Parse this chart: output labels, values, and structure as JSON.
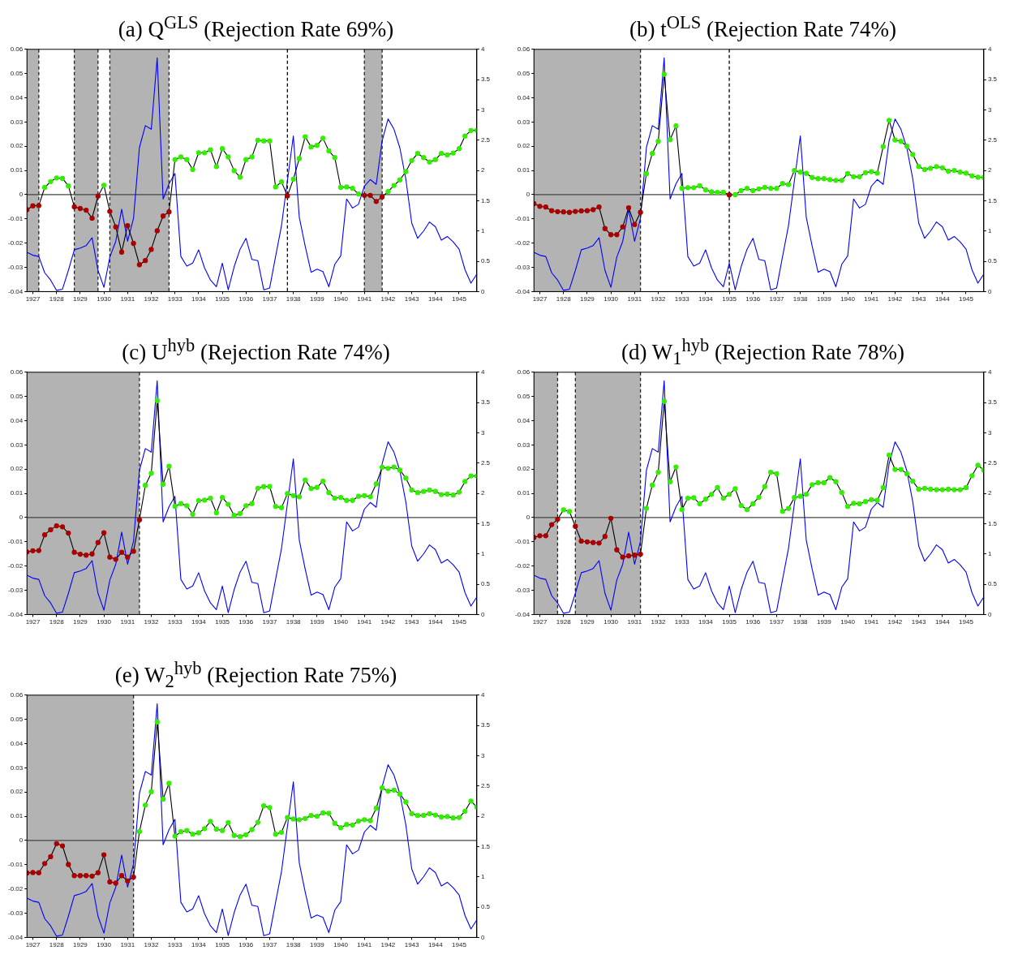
{
  "chart_data": [
    {
      "type": "line",
      "title": "(a) Q$^{GLS}$ (Rejection Rate 69%)",
      "marker": "circle",
      "grid": false,
      "legend": false,
      "x": [
        1926.75,
        1927,
        1927.25,
        1927.5,
        1927.75,
        1928,
        1928.25,
        1928.5,
        1928.75,
        1929,
        1929.25,
        1929.5,
        1929.75,
        1930,
        1930.25,
        1930.5,
        1930.75,
        1931,
        1931.25,
        1931.5,
        1931.75,
        1932,
        1932.25,
        1932.5,
        1932.75,
        1933,
        1933.25,
        1933.5,
        1933.75,
        1934,
        1934.25,
        1934.5,
        1934.75,
        1935,
        1935.25,
        1935.5,
        1935.75,
        1936,
        1936.25,
        1936.5,
        1936.75,
        1937,
        1937.25,
        1937.5,
        1937.75,
        1938,
        1938.25,
        1938.5,
        1938.75,
        1939,
        1939.25,
        1939.5,
        1939.75,
        1940,
        1940.25,
        1940.5,
        1940.75,
        1941,
        1941.25,
        1941.5,
        1941.75,
        1942,
        1942.25,
        1942.5,
        1942.75,
        1943,
        1943.25,
        1943.5,
        1943.75,
        1944,
        1944.25,
        1944.5,
        1944.75,
        1945,
        1945.25,
        1945.5,
        1945.75
      ],
      "xlim": [
        1926.75,
        1945.75
      ],
      "xticks": [
        1927,
        1928,
        1929,
        1930,
        1931,
        1932,
        1933,
        1934,
        1935,
        1936,
        1937,
        1938,
        1939,
        1940,
        1941,
        1942,
        1943,
        1944,
        1945
      ],
      "ylim": [
        -0.04,
        0.06
      ],
      "yticks": [
        -0.04,
        -0.03,
        -0.02,
        -0.01,
        0,
        0.01,
        0.02,
        0.03,
        0.04,
        0.05,
        0.06
      ],
      "y2lim": [
        0,
        4
      ],
      "y2ticks": [
        0,
        0.5,
        1,
        1.5,
        2,
        2.5,
        3,
        3.5,
        4
      ],
      "bands": [
        {
          "axis": "x",
          "from": 1926.75,
          "to": 1927.25,
          "color": "#b3b3b3"
        },
        {
          "axis": "x",
          "from": 1928.75,
          "to": 1929.75,
          "color": "#b3b3b3"
        },
        {
          "axis": "x",
          "from": 1930.25,
          "to": 1932.75,
          "color": "#b3b3b3"
        },
        {
          "axis": "x",
          "from": 1941,
          "to": 1941.75,
          "color": "#b3b3b3"
        }
      ],
      "ref_lines": [
        {
          "axis": "x",
          "value": 1927.25,
          "color": "#222222",
          "line_style": "dashed"
        },
        {
          "axis": "x",
          "value": 1928.75,
          "color": "#222222",
          "line_style": "dashed"
        },
        {
          "axis": "x",
          "value": 1929.75,
          "color": "#222222",
          "line_style": "dashed"
        },
        {
          "axis": "x",
          "value": 1930.25,
          "color": "#222222",
          "line_style": "dashed"
        },
        {
          "axis": "x",
          "value": 1932.75,
          "color": "#222222",
          "line_style": "dashed"
        },
        {
          "axis": "x",
          "value": 1937.75,
          "color": "#000000",
          "line_style": "dashed"
        },
        {
          "axis": "x",
          "value": 1941,
          "color": "#222222",
          "line_style": "dashed"
        },
        {
          "axis": "x",
          "value": 1941.75,
          "color": "#222222",
          "line_style": "dashed"
        },
        {
          "axis": "y",
          "value": 0,
          "color": "#444444",
          "line_style": "solid"
        }
      ],
      "series": [
        {
          "color": "#000000",
          "values": [
            -0.0062,
            -0.0046,
            -0.0045,
            0.003,
            0.0054,
            0.0069,
            0.0067,
            0.0036,
            -0.005,
            -0.0057,
            -0.0064,
            -0.0097,
            -0.0006,
            0.0039,
            -0.0069,
            -0.0133,
            -0.0237,
            -0.0128,
            -0.0201,
            -0.0289,
            -0.0272,
            -0.0226,
            -0.0149,
            -0.0088,
            -0.0071,
            0.0145,
            0.0156,
            0.0145,
            0.0104,
            0.0173,
            0.0173,
            0.0185,
            0.0116,
            0.019,
            0.0156,
            0.0099,
            0.0072,
            0.0145,
            0.0156,
            0.0225,
            0.0222,
            0.0222,
            0.0032,
            0.0053,
            -0.0005,
            0.0064,
            0.0149,
            0.0239,
            0.0197,
            0.0204,
            0.0233,
            0.0181,
            0.0153,
            0.003,
            0.0032,
            0.0026,
            0.0003,
            -0.0003,
            -0.0003,
            -0.0028,
            -0.0009,
            0.0013,
            0.0038,
            0.0061,
            0.0095,
            0.0141,
            0.017,
            0.0153,
            0.0135,
            0.0145,
            0.017,
            0.0164,
            0.0172,
            0.019,
            0.0242,
            0.0265,
            0.0266
          ],
          "colors": [
            "#aa0000",
            "#aa0000",
            "#aa0000",
            "#33ee00",
            "#33ee00",
            "#33ee00",
            "#33ee00",
            "#33ee00",
            "#aa0000",
            "#aa0000",
            "#aa0000",
            "#aa0000",
            "#aa0000",
            "#33ee00",
            "#aa0000",
            "#aa0000",
            "#aa0000",
            "#aa0000",
            "#aa0000",
            "#aa0000",
            "#aa0000",
            "#aa0000",
            "#aa0000",
            "#aa0000",
            "#aa0000",
            "#33ee00",
            "#33ee00",
            "#33ee00",
            "#33ee00",
            "#33ee00",
            "#33ee00",
            "#33ee00",
            "#33ee00",
            "#33ee00",
            "#33ee00",
            "#33ee00",
            "#33ee00",
            "#33ee00",
            "#33ee00",
            "#33ee00",
            "#33ee00",
            "#33ee00",
            "#33ee00",
            "#33ee00",
            "#aa0000",
            "#33ee00",
            "#33ee00",
            "#33ee00",
            "#33ee00",
            "#33ee00",
            "#33ee00",
            "#33ee00",
            "#33ee00",
            "#33ee00",
            "#33ee00",
            "#33ee00",
            "#33ee00",
            "#aa0000",
            "#aa0000",
            "#aa0000",
            "#aa0000",
            "#33ee00",
            "#33ee00",
            "#33ee00",
            "#33ee00",
            "#33ee00",
            "#33ee00",
            "#33ee00",
            "#33ee00",
            "#33ee00",
            "#33ee00",
            "#33ee00",
            "#33ee00",
            "#33ee00",
            "#33ee00",
            "#33ee00",
            "#33ee00"
          ]
        },
        {
          "color": "#0000ff",
          "axis": "y2",
          "marker": "none",
          "values": [
            0.65,
            0.6,
            0.58,
            0.31,
            0.19,
            0.02,
            0.04,
            0.35,
            0.69,
            0.72,
            0.76,
            0.89,
            0.35,
            0.07,
            0.57,
            0.83,
            1.36,
            0.83,
            1.21,
            2.38,
            2.74,
            2.68,
            3.86,
            1.53,
            1.78,
            1.95,
            0.58,
            0.42,
            0.47,
            0.69,
            0.39,
            0.19,
            0.08,
            0.47,
            0.03,
            0.41,
            0.7,
            0.88,
            0.53,
            0.51,
            0.03,
            0.06,
            0.58,
            1.09,
            1.83,
            2.57,
            1.23,
            0.75,
            0.32,
            0.37,
            0.33,
            0.08,
            0.45,
            0.59,
            1.53,
            1.38,
            1.44,
            1.74,
            1.85,
            1.77,
            2.49,
            2.85,
            2.68,
            2.37,
            1.86,
            1.13,
            0.88,
            1,
            1.15,
            1.07,
            0.85,
            0.91,
            0.82,
            0.7,
            0.36,
            0.14,
            0.29
          ]
        }
      ]
    },
    {
      "type": "line",
      "title": "(b) t$^{OLS}$ (Rejection Rate 74%)",
      "marker": "circle",
      "grid": false,
      "legend": false,
      "x": [
        1926.75,
        1927,
        1927.25,
        1927.5,
        1927.75,
        1928,
        1928.25,
        1928.5,
        1928.75,
        1929,
        1929.25,
        1929.5,
        1929.75,
        1930,
        1930.25,
        1930.5,
        1930.75,
        1931,
        1931.25,
        1931.5,
        1931.75,
        1932,
        1932.25,
        1932.5,
        1932.75,
        1933,
        1933.25,
        1933.5,
        1933.75,
        1934,
        1934.25,
        1934.5,
        1934.75,
        1935,
        1935.25,
        1935.5,
        1935.75,
        1936,
        1936.25,
        1936.5,
        1936.75,
        1937,
        1937.25,
        1937.5,
        1937.75,
        1938,
        1938.25,
        1938.5,
        1938.75,
        1939,
        1939.25,
        1939.5,
        1939.75,
        1940,
        1940.25,
        1940.5,
        1940.75,
        1941,
        1941.25,
        1941.5,
        1941.75,
        1942,
        1942.25,
        1942.5,
        1942.75,
        1943,
        1943.25,
        1943.5,
        1943.75,
        1944,
        1944.25,
        1944.5,
        1944.75,
        1945,
        1945.25,
        1945.5,
        1945.75
      ],
      "xlim": [
        1926.75,
        1945.75
      ],
      "xticks": [
        1927,
        1928,
        1929,
        1930,
        1931,
        1932,
        1933,
        1934,
        1935,
        1936,
        1937,
        1938,
        1939,
        1940,
        1941,
        1942,
        1943,
        1944,
        1945
      ],
      "ylim": [
        -0.04,
        0.06
      ],
      "yticks": [
        -0.04,
        -0.03,
        -0.02,
        -0.01,
        0,
        0.01,
        0.02,
        0.03,
        0.04,
        0.05,
        0.06
      ],
      "y2lim": [
        0,
        4
      ],
      "y2ticks": [
        0,
        0.5,
        1,
        1.5,
        2,
        2.5,
        3,
        3.5,
        4
      ],
      "bands": [
        {
          "axis": "x",
          "from": 1926.75,
          "to": 1931.25,
          "color": "#b3b3b3"
        }
      ],
      "ref_lines": [
        {
          "axis": "x",
          "value": 1931.25,
          "color": "#222222",
          "line_style": "dashed"
        },
        {
          "axis": "x",
          "value": 1935,
          "color": "#000000",
          "line_style": "dashed"
        },
        {
          "axis": "y",
          "value": 0,
          "color": "#444444",
          "line_style": "solid"
        }
      ],
      "series": [
        {
          "color": "#000000",
          "values": [
            -0.0037,
            -0.0048,
            -0.0051,
            -0.0066,
            -0.007,
            -0.0071,
            -0.0073,
            -0.0069,
            -0.0067,
            -0.0066,
            -0.0062,
            -0.0051,
            -0.014,
            -0.0165,
            -0.0165,
            -0.0133,
            -0.0054,
            -0.0123,
            -0.0073,
            0.0087,
            0.017,
            0.022,
            0.0497,
            0.0227,
            0.0284,
            0.0026,
            0.0029,
            0.0029,
            0.0037,
            0.002,
            0.0012,
            0.0009,
            0.001,
            -0.0001,
            0,
            0.0017,
            0.0026,
            0.0017,
            0.0024,
            0.003,
            0.0026,
            0.0026,
            0.0046,
            0.0042,
            0.01,
            0.0093,
            0.0088,
            0.0071,
            0.0066,
            0.0066,
            0.0062,
            0.0059,
            0.0059,
            0.0087,
            0.0074,
            0.0074,
            0.0091,
            0.0095,
            0.0089,
            0.0199,
            0.0307,
            0.0226,
            0.022,
            0.02,
            0.0166,
            0.0116,
            0.0104,
            0.0109,
            0.0116,
            0.0111,
            0.0097,
            0.01,
            0.0093,
            0.0089,
            0.0078,
            0.0072,
            0.0071
          ],
          "colors": [
            "#aa0000",
            "#aa0000",
            "#aa0000",
            "#aa0000",
            "#aa0000",
            "#aa0000",
            "#aa0000",
            "#aa0000",
            "#aa0000",
            "#aa0000",
            "#aa0000",
            "#aa0000",
            "#aa0000",
            "#aa0000",
            "#aa0000",
            "#aa0000",
            "#aa0000",
            "#aa0000",
            "#aa0000",
            "#33ee00",
            "#33ee00",
            "#33ee00",
            "#33ee00",
            "#33ee00",
            "#33ee00",
            "#33ee00",
            "#33ee00",
            "#33ee00",
            "#33ee00",
            "#33ee00",
            "#33ee00",
            "#33ee00",
            "#33ee00",
            "#aa0000",
            "#33ee00",
            "#33ee00",
            "#33ee00",
            "#33ee00",
            "#33ee00",
            "#33ee00",
            "#33ee00",
            "#33ee00",
            "#33ee00",
            "#33ee00",
            "#33ee00",
            "#33ee00",
            "#33ee00",
            "#33ee00",
            "#33ee00",
            "#33ee00",
            "#33ee00",
            "#33ee00",
            "#33ee00",
            "#33ee00",
            "#33ee00",
            "#33ee00",
            "#33ee00",
            "#33ee00",
            "#33ee00",
            "#33ee00",
            "#33ee00",
            "#33ee00",
            "#33ee00",
            "#33ee00",
            "#33ee00",
            "#33ee00",
            "#33ee00",
            "#33ee00",
            "#33ee00",
            "#33ee00",
            "#33ee00",
            "#33ee00",
            "#33ee00",
            "#33ee00",
            "#33ee00",
            "#33ee00",
            "#33ee00"
          ]
        },
        {
          "color": "#0000ff",
          "axis": "y2",
          "marker": "none",
          "values": [
            0.65,
            0.6,
            0.58,
            0.31,
            0.19,
            0.02,
            0.04,
            0.35,
            0.69,
            0.72,
            0.76,
            0.89,
            0.35,
            0.07,
            0.57,
            0.83,
            1.36,
            0.83,
            1.21,
            2.38,
            2.74,
            2.68,
            3.86,
            1.53,
            1.78,
            1.95,
            0.58,
            0.42,
            0.47,
            0.69,
            0.39,
            0.19,
            0.08,
            0.47,
            0.03,
            0.41,
            0.7,
            0.88,
            0.53,
            0.51,
            0.03,
            0.06,
            0.58,
            1.09,
            1.83,
            2.57,
            1.23,
            0.75,
            0.32,
            0.37,
            0.33,
            0.08,
            0.45,
            0.59,
            1.53,
            1.38,
            1.44,
            1.74,
            1.85,
            1.77,
            2.49,
            2.85,
            2.68,
            2.37,
            1.86,
            1.13,
            0.88,
            1,
            1.15,
            1.07,
            0.85,
            0.91,
            0.82,
            0.7,
            0.36,
            0.14,
            0.29
          ]
        }
      ]
    },
    {
      "type": "line",
      "title": "(c) U$^{hyb}$ (Rejection Rate 74%)",
      "marker": "circle",
      "grid": false,
      "legend": false,
      "x": [
        1926.75,
        1927,
        1927.25,
        1927.5,
        1927.75,
        1928,
        1928.25,
        1928.5,
        1928.75,
        1929,
        1929.25,
        1929.5,
        1929.75,
        1930,
        1930.25,
        1930.5,
        1930.75,
        1931,
        1931.25,
        1931.5,
        1931.75,
        1932,
        1932.25,
        1932.5,
        1932.75,
        1933,
        1933.25,
        1933.5,
        1933.75,
        1934,
        1934.25,
        1934.5,
        1934.75,
        1935,
        1935.25,
        1935.5,
        1935.75,
        1936,
        1936.25,
        1936.5,
        1936.75,
        1937,
        1937.25,
        1937.5,
        1937.75,
        1938,
        1938.25,
        1938.5,
        1938.75,
        1939,
        1939.25,
        1939.5,
        1939.75,
        1940,
        1940.25,
        1940.5,
        1940.75,
        1941,
        1941.25,
        1941.5,
        1941.75,
        1942,
        1942.25,
        1942.5,
        1942.75,
        1943,
        1943.25,
        1943.5,
        1943.75,
        1944,
        1944.25,
        1944.5,
        1944.75,
        1945,
        1945.25,
        1945.5,
        1945.75
      ],
      "xlim": [
        1926.75,
        1945.75
      ],
      "xticks": [
        1927,
        1928,
        1929,
        1930,
        1931,
        1932,
        1933,
        1934,
        1935,
        1936,
        1937,
        1938,
        1939,
        1940,
        1941,
        1942,
        1943,
        1944,
        1945
      ],
      "ylim": [
        -0.04,
        0.06
      ],
      "yticks": [
        -0.04,
        -0.03,
        -0.02,
        -0.01,
        0,
        0.01,
        0.02,
        0.03,
        0.04,
        0.05,
        0.06
      ],
      "y2lim": [
        0,
        4
      ],
      "y2ticks": [
        0,
        0.5,
        1,
        1.5,
        2,
        2.5,
        3,
        3.5,
        4
      ],
      "bands": [
        {
          "axis": "x",
          "from": 1926.75,
          "to": 1931.5,
          "color": "#b3b3b3"
        }
      ],
      "ref_lines": [
        {
          "axis": "x",
          "value": 1931.5,
          "color": "#222222",
          "line_style": "dashed"
        },
        {
          "axis": "y",
          "value": 0,
          "color": "#444444",
          "line_style": "solid"
        }
      ],
      "series": [
        {
          "color": "#000000",
          "values": [
            -0.0142,
            -0.0137,
            -0.0136,
            -0.0071,
            -0.005,
            -0.0034,
            -0.0038,
            -0.0064,
            -0.0143,
            -0.0151,
            -0.0155,
            -0.015,
            -0.0103,
            -0.0063,
            -0.0163,
            -0.0172,
            -0.0143,
            -0.0163,
            -0.0139,
            -0.0009,
            0.0133,
            0.0183,
            0.0483,
            0.0138,
            0.0212,
            0.0047,
            0.0058,
            0.0049,
            0.0014,
            0.007,
            0.0072,
            0.008,
            0.002,
            0.0083,
            0.0055,
            0.0009,
            0.0017,
            0.0049,
            0.0058,
            0.0121,
            0.0128,
            0.0128,
            0.0046,
            0.0041,
            0.0099,
            0.0091,
            0.0086,
            0.0155,
            0.012,
            0.0125,
            0.015,
            0.0103,
            0.008,
            0.0083,
            0.0071,
            0.0071,
            0.0088,
            0.0091,
            0.0086,
            0.0139,
            0.0208,
            0.0203,
            0.0209,
            0.0196,
            0.0163,
            0.0114,
            0.0103,
            0.0108,
            0.0114,
            0.0108,
            0.0095,
            0.0097,
            0.0093,
            0.0105,
            0.0149,
            0.0172,
            0.0172
          ],
          "colors": [
            "#aa0000",
            "#aa0000",
            "#aa0000",
            "#aa0000",
            "#aa0000",
            "#aa0000",
            "#aa0000",
            "#aa0000",
            "#aa0000",
            "#aa0000",
            "#aa0000",
            "#aa0000",
            "#aa0000",
            "#aa0000",
            "#aa0000",
            "#aa0000",
            "#aa0000",
            "#aa0000",
            "#aa0000",
            "#aa0000",
            "#33ee00",
            "#33ee00",
            "#33ee00",
            "#33ee00",
            "#33ee00",
            "#33ee00",
            "#33ee00",
            "#33ee00",
            "#33ee00",
            "#33ee00",
            "#33ee00",
            "#33ee00",
            "#33ee00",
            "#33ee00",
            "#33ee00",
            "#33ee00",
            "#33ee00",
            "#33ee00",
            "#33ee00",
            "#33ee00",
            "#33ee00",
            "#33ee00",
            "#33ee00",
            "#33ee00",
            "#33ee00",
            "#33ee00",
            "#33ee00",
            "#33ee00",
            "#33ee00",
            "#33ee00",
            "#33ee00",
            "#33ee00",
            "#33ee00",
            "#33ee00",
            "#33ee00",
            "#33ee00",
            "#33ee00",
            "#33ee00",
            "#33ee00",
            "#33ee00",
            "#33ee00",
            "#33ee00",
            "#33ee00",
            "#33ee00",
            "#33ee00",
            "#33ee00",
            "#33ee00",
            "#33ee00",
            "#33ee00",
            "#33ee00",
            "#33ee00",
            "#33ee00",
            "#33ee00",
            "#33ee00",
            "#33ee00",
            "#33ee00",
            "#33ee00"
          ]
        },
        {
          "color": "#0000ff",
          "axis": "y2",
          "marker": "none",
          "values": [
            0.65,
            0.6,
            0.58,
            0.31,
            0.19,
            0.02,
            0.04,
            0.35,
            0.69,
            0.72,
            0.76,
            0.89,
            0.35,
            0.07,
            0.57,
            0.83,
            1.36,
            0.83,
            1.21,
            2.38,
            2.74,
            2.68,
            3.86,
            1.53,
            1.78,
            1.95,
            0.58,
            0.42,
            0.47,
            0.69,
            0.39,
            0.19,
            0.08,
            0.47,
            0.03,
            0.41,
            0.7,
            0.88,
            0.53,
            0.51,
            0.03,
            0.06,
            0.58,
            1.09,
            1.83,
            2.57,
            1.23,
            0.75,
            0.32,
            0.37,
            0.33,
            0.08,
            0.45,
            0.59,
            1.53,
            1.38,
            1.44,
            1.74,
            1.85,
            1.77,
            2.49,
            2.85,
            2.68,
            2.37,
            1.86,
            1.13,
            0.88,
            1,
            1.15,
            1.07,
            0.85,
            0.91,
            0.82,
            0.7,
            0.36,
            0.14,
            0.29
          ]
        }
      ]
    },
    {
      "type": "line",
      "title": "(d) W$_{1}$$^{hyb}$ (Rejection Rate 78%)",
      "marker": "circle",
      "grid": false,
      "legend": false,
      "x": [
        1926.75,
        1927,
        1927.25,
        1927.5,
        1927.75,
        1928,
        1928.25,
        1928.5,
        1928.75,
        1929,
        1929.25,
        1929.5,
        1929.75,
        1930,
        1930.25,
        1930.5,
        1930.75,
        1931,
        1931.25,
        1931.5,
        1931.75,
        1932,
        1932.25,
        1932.5,
        1932.75,
        1933,
        1933.25,
        1933.5,
        1933.75,
        1934,
        1934.25,
        1934.5,
        1934.75,
        1935,
        1935.25,
        1935.5,
        1935.75,
        1936,
        1936.25,
        1936.5,
        1936.75,
        1937,
        1937.25,
        1937.5,
        1937.75,
        1938,
        1938.25,
        1938.5,
        1938.75,
        1939,
        1939.25,
        1939.5,
        1939.75,
        1940,
        1940.25,
        1940.5,
        1940.75,
        1941,
        1941.25,
        1941.5,
        1941.75,
        1942,
        1942.25,
        1942.5,
        1942.75,
        1943,
        1943.25,
        1943.5,
        1943.75,
        1944,
        1944.25,
        1944.5,
        1944.75,
        1945,
        1945.25,
        1945.5,
        1945.75
      ],
      "xlim": [
        1926.75,
        1945.75
      ],
      "xticks": [
        1927,
        1928,
        1929,
        1930,
        1931,
        1932,
        1933,
        1934,
        1935,
        1936,
        1937,
        1938,
        1939,
        1940,
        1941,
        1942,
        1943,
        1944,
        1945
      ],
      "ylim": [
        -0.04,
        0.06
      ],
      "yticks": [
        -0.04,
        -0.03,
        -0.02,
        -0.01,
        0,
        0.01,
        0.02,
        0.03,
        0.04,
        0.05,
        0.06
      ],
      "y2lim": [
        0,
        4
      ],
      "y2ticks": [
        0,
        0.5,
        1,
        1.5,
        2,
        2.5,
        3,
        3.5,
        4
      ],
      "bands": [
        {
          "axis": "x",
          "from": 1926.75,
          "to": 1927.75,
          "color": "#b3b3b3"
        },
        {
          "axis": "x",
          "from": 1928.5,
          "to": 1931.25,
          "color": "#b3b3b3"
        }
      ],
      "ref_lines": [
        {
          "axis": "x",
          "value": 1927.75,
          "color": "#222222",
          "line_style": "dashed"
        },
        {
          "axis": "x",
          "value": 1928.5,
          "color": "#222222",
          "line_style": "dashed"
        },
        {
          "axis": "x",
          "value": 1931.25,
          "color": "#222222",
          "line_style": "dashed"
        },
        {
          "axis": "y",
          "value": 0,
          "color": "#444444",
          "line_style": "solid"
        }
      ],
      "series": [
        {
          "color": "#000000",
          "values": [
            -0.0082,
            -0.0075,
            -0.0075,
            -0.0029,
            -0.0007,
            0.0032,
            0.0025,
            -0.0036,
            -0.0097,
            -0.01,
            -0.0103,
            -0.0105,
            -0.0078,
            -0.0003,
            -0.0133,
            -0.0163,
            -0.0158,
            -0.0155,
            -0.0151,
            0.0038,
            0.0134,
            0.0187,
            0.048,
            0.0148,
            0.0209,
            0.0033,
            0.008,
            0.0082,
            0.0057,
            0.0076,
            0.0096,
            0.0124,
            0.008,
            0.0096,
            0.0119,
            0.005,
            0.0033,
            0.0057,
            0.0084,
            0.0128,
            0.0187,
            0.0181,
            0.0026,
            0.0038,
            0.0083,
            0.0088,
            0.0096,
            0.0136,
            0.0144,
            0.0144,
            0.0165,
            0.0148,
            0.0104,
            0.0046,
            0.0059,
            0.0057,
            0.0066,
            0.0074,
            0.0071,
            0.0124,
            0.0258,
            0.0199,
            0.0199,
            0.0181,
            0.015,
            0.0117,
            0.0121,
            0.0117,
            0.0115,
            0.0115,
            0.0117,
            0.0115,
            0.0115,
            0.0124,
            0.0173,
            0.0216,
            0.0196
          ],
          "colors": [
            "#aa0000",
            "#aa0000",
            "#aa0000",
            "#aa0000",
            "#aa0000",
            "#33ee00",
            "#33ee00",
            "#aa0000",
            "#aa0000",
            "#aa0000",
            "#aa0000",
            "#aa0000",
            "#aa0000",
            "#aa0000",
            "#aa0000",
            "#aa0000",
            "#aa0000",
            "#aa0000",
            "#aa0000",
            "#33ee00",
            "#33ee00",
            "#33ee00",
            "#33ee00",
            "#33ee00",
            "#33ee00",
            "#33ee00",
            "#33ee00",
            "#33ee00",
            "#33ee00",
            "#33ee00",
            "#33ee00",
            "#33ee00",
            "#33ee00",
            "#33ee00",
            "#33ee00",
            "#33ee00",
            "#33ee00",
            "#33ee00",
            "#33ee00",
            "#33ee00",
            "#33ee00",
            "#33ee00",
            "#33ee00",
            "#33ee00",
            "#33ee00",
            "#33ee00",
            "#33ee00",
            "#33ee00",
            "#33ee00",
            "#33ee00",
            "#33ee00",
            "#33ee00",
            "#33ee00",
            "#33ee00",
            "#33ee00",
            "#33ee00",
            "#33ee00",
            "#33ee00",
            "#33ee00",
            "#33ee00",
            "#33ee00",
            "#33ee00",
            "#33ee00",
            "#33ee00",
            "#33ee00",
            "#33ee00",
            "#33ee00",
            "#33ee00",
            "#33ee00",
            "#33ee00",
            "#33ee00",
            "#33ee00",
            "#33ee00",
            "#33ee00",
            "#33ee00",
            "#33ee00",
            "#33ee00"
          ]
        },
        {
          "color": "#0000ff",
          "axis": "y2",
          "marker": "none",
          "values": [
            0.65,
            0.6,
            0.58,
            0.31,
            0.19,
            0.02,
            0.04,
            0.35,
            0.69,
            0.72,
            0.76,
            0.89,
            0.35,
            0.07,
            0.57,
            0.83,
            1.36,
            0.83,
            1.21,
            2.38,
            2.74,
            2.68,
            3.86,
            1.53,
            1.78,
            1.95,
            0.58,
            0.42,
            0.47,
            0.69,
            0.39,
            0.19,
            0.08,
            0.47,
            0.03,
            0.41,
            0.7,
            0.88,
            0.53,
            0.51,
            0.03,
            0.06,
            0.58,
            1.09,
            1.83,
            2.57,
            1.23,
            0.75,
            0.32,
            0.37,
            0.33,
            0.08,
            0.45,
            0.59,
            1.53,
            1.38,
            1.44,
            1.74,
            1.85,
            1.77,
            2.49,
            2.85,
            2.68,
            2.37,
            1.86,
            1.13,
            0.88,
            1,
            1.15,
            1.07,
            0.85,
            0.91,
            0.82,
            0.7,
            0.36,
            0.14,
            0.29
          ]
        }
      ]
    },
    {
      "type": "line",
      "title": "(e) W$_{2}$$^{hyb}$ (Rejection Rate 75%)",
      "marker": "circle",
      "grid": false,
      "legend": false,
      "x": [
        1926.75,
        1927,
        1927.25,
        1927.5,
        1927.75,
        1928,
        1928.25,
        1928.5,
        1928.75,
        1929,
        1929.25,
        1929.5,
        1929.75,
        1930,
        1930.25,
        1930.5,
        1930.75,
        1931,
        1931.25,
        1931.5,
        1931.75,
        1932,
        1932.25,
        1932.5,
        1932.75,
        1933,
        1933.25,
        1933.5,
        1933.75,
        1934,
        1934.25,
        1934.5,
        1934.75,
        1935,
        1935.25,
        1935.5,
        1935.75,
        1936,
        1936.25,
        1936.5,
        1936.75,
        1937,
        1937.25,
        1937.5,
        1937.75,
        1938,
        1938.25,
        1938.5,
        1938.75,
        1939,
        1939.25,
        1939.5,
        1939.75,
        1940,
        1940.25,
        1940.5,
        1940.75,
        1941,
        1941.25,
        1941.5,
        1941.75,
        1942,
        1942.25,
        1942.5,
        1942.75,
        1943,
        1943.25,
        1943.5,
        1943.75,
        1944,
        1944.25,
        1944.5,
        1944.75,
        1945,
        1945.25,
        1945.5,
        1945.75
      ],
      "xlim": [
        1926.75,
        1945.75
      ],
      "xticks": [
        1927,
        1928,
        1929,
        1930,
        1931,
        1932,
        1933,
        1934,
        1935,
        1936,
        1937,
        1938,
        1939,
        1940,
        1941,
        1942,
        1943,
        1944,
        1945
      ],
      "ylim": [
        -0.04,
        0.06
      ],
      "yticks": [
        -0.04,
        -0.03,
        -0.02,
        -0.01,
        0,
        0.01,
        0.02,
        0.03,
        0.04,
        0.05,
        0.06
      ],
      "y2lim": [
        0,
        4
      ],
      "y2ticks": [
        0,
        0.5,
        1,
        1.5,
        2,
        2.5,
        3,
        3.5,
        4
      ],
      "bands": [
        {
          "axis": "x",
          "from": 1926.75,
          "to": 1931.25,
          "color": "#b3b3b3"
        }
      ],
      "ref_lines": [
        {
          "axis": "x",
          "value": 1931.25,
          "color": "#222222",
          "line_style": "dashed"
        },
        {
          "axis": "y",
          "value": 0,
          "color": "#444444",
          "line_style": "solid"
        }
      ],
      "series": [
        {
          "color": "#000000",
          "values": [
            -0.0134,
            -0.0132,
            -0.0133,
            -0.0095,
            -0.0067,
            -0.0013,
            -0.0022,
            -0.0099,
            -0.0145,
            -0.0145,
            -0.0145,
            -0.0147,
            -0.0133,
            -0.0059,
            -0.0171,
            -0.0176,
            -0.0145,
            -0.0167,
            -0.0151,
            0.0037,
            0.0146,
            0.0201,
            0.0489,
            0.0171,
            0.0236,
            0.0018,
            0.0036,
            0.0041,
            0.0026,
            0.0032,
            0.0049,
            0.0079,
            0.0047,
            0.0041,
            0.0074,
            0.0021,
            0.0016,
            0.0024,
            0.0045,
            0.0075,
            0.0143,
            0.0136,
            0.0026,
            0.0034,
            0.0095,
            0.0089,
            0.0086,
            0.0091,
            0.0103,
            0.01,
            0.0114,
            0.0112,
            0.0071,
            0.0053,
            0.0066,
            0.0064,
            0.008,
            0.0086,
            0.0082,
            0.0133,
            0.0217,
            0.0204,
            0.0208,
            0.0192,
            0.0159,
            0.0111,
            0.0103,
            0.0104,
            0.0111,
            0.0105,
            0.0097,
            0.0099,
            0.0093,
            0.0095,
            0.0121,
            0.0163,
            0.0138
          ],
          "colors": [
            "#aa0000",
            "#aa0000",
            "#aa0000",
            "#aa0000",
            "#aa0000",
            "#aa0000",
            "#aa0000",
            "#aa0000",
            "#aa0000",
            "#aa0000",
            "#aa0000",
            "#aa0000",
            "#aa0000",
            "#aa0000",
            "#aa0000",
            "#aa0000",
            "#aa0000",
            "#aa0000",
            "#aa0000",
            "#33ee00",
            "#33ee00",
            "#33ee00",
            "#33ee00",
            "#33ee00",
            "#33ee00",
            "#33ee00",
            "#33ee00",
            "#33ee00",
            "#33ee00",
            "#33ee00",
            "#33ee00",
            "#33ee00",
            "#33ee00",
            "#33ee00",
            "#33ee00",
            "#33ee00",
            "#33ee00",
            "#33ee00",
            "#33ee00",
            "#33ee00",
            "#33ee00",
            "#33ee00",
            "#33ee00",
            "#33ee00",
            "#33ee00",
            "#33ee00",
            "#33ee00",
            "#33ee00",
            "#33ee00",
            "#33ee00",
            "#33ee00",
            "#33ee00",
            "#33ee00",
            "#33ee00",
            "#33ee00",
            "#33ee00",
            "#33ee00",
            "#33ee00",
            "#33ee00",
            "#33ee00",
            "#33ee00",
            "#33ee00",
            "#33ee00",
            "#33ee00",
            "#33ee00",
            "#33ee00",
            "#33ee00",
            "#33ee00",
            "#33ee00",
            "#33ee00",
            "#33ee00",
            "#33ee00",
            "#33ee00",
            "#33ee00",
            "#33ee00",
            "#33ee00",
            "#33ee00"
          ]
        },
        {
          "color": "#0000ff",
          "axis": "y2",
          "marker": "none",
          "values": [
            0.65,
            0.6,
            0.58,
            0.31,
            0.19,
            0.02,
            0.04,
            0.35,
            0.69,
            0.72,
            0.76,
            0.89,
            0.35,
            0.07,
            0.57,
            0.83,
            1.36,
            0.83,
            1.21,
            2.38,
            2.74,
            2.68,
            3.86,
            1.53,
            1.78,
            1.95,
            0.58,
            0.42,
            0.47,
            0.69,
            0.39,
            0.19,
            0.08,
            0.47,
            0.03,
            0.41,
            0.7,
            0.88,
            0.53,
            0.51,
            0.03,
            0.06,
            0.58,
            1.09,
            1.83,
            2.57,
            1.23,
            0.75,
            0.32,
            0.37,
            0.33,
            0.08,
            0.45,
            0.59,
            1.53,
            1.38,
            1.44,
            1.74,
            1.85,
            1.77,
            2.49,
            2.85,
            2.68,
            2.37,
            1.86,
            1.13,
            0.88,
            1,
            1.15,
            1.07,
            0.85,
            0.91,
            0.82,
            0.7,
            0.36,
            0.14,
            0.29
          ]
        }
      ]
    }
  ]
}
